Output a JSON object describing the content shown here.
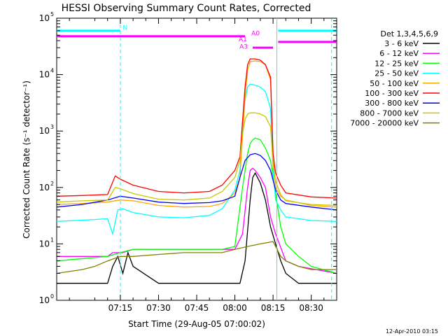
{
  "chart_data": {
    "type": "line",
    "title": "HESSI Observing Summary Count Rates, Corrected",
    "xlabel": "Start Time (29-Aug-05 07:00:02)",
    "ylabel": "Corrected Count Rate (s⁻¹ detector⁻¹)",
    "footer": "12-Apr-2010 03:15",
    "x_unit": "minutes after 07:00:02",
    "xlim": [
      -10,
      100
    ],
    "ylim": [
      1,
      100000
    ],
    "yscale": "log",
    "xticks": [
      {
        "x": 15,
        "label": "07:15"
      },
      {
        "x": 30,
        "label": "07:30"
      },
      {
        "x": 45,
        "label": "07:45"
      },
      {
        "x": 60,
        "label": "08:00"
      },
      {
        "x": 75,
        "label": "08:15"
      },
      {
        "x": 90,
        "label": "08:30"
      }
    ],
    "yticks": [
      {
        "y": 1,
        "label": "10",
        "exp": "0"
      },
      {
        "y": 10,
        "label": "10",
        "exp": "1"
      },
      {
        "y": 100,
        "label": "10",
        "exp": "2"
      },
      {
        "y": 1000,
        "label": "10",
        "exp": "3"
      },
      {
        "y": 10000,
        "label": "10",
        "exp": "4"
      },
      {
        "y": 100000,
        "label": "10",
        "exp": "5"
      }
    ],
    "legend_title": "Det 1,3,4,5,6,9",
    "legend_position": "right",
    "series": [
      {
        "name": "3 - 6 keV",
        "color": "#000000",
        "x": [
          -10,
          0,
          10,
          12,
          14,
          16,
          18,
          20,
          30,
          40,
          50,
          55,
          62,
          64,
          66,
          67,
          68,
          70,
          72,
          74,
          76,
          78,
          80,
          85,
          90,
          100
        ],
        "y": [
          2,
          2,
          2,
          4,
          6,
          3,
          7,
          4,
          2,
          2,
          2,
          2,
          2,
          5,
          60,
          150,
          180,
          120,
          60,
          20,
          10,
          5,
          3,
          2,
          2,
          2
        ]
      },
      {
        "name": "6 - 12 keV",
        "color": "#ff00ff",
        "x": [
          -10,
          10,
          12,
          16,
          20,
          30,
          40,
          50,
          60,
          63,
          65,
          66,
          67,
          68,
          70,
          72,
          74,
          76,
          80,
          85,
          100
        ],
        "y": [
          6,
          6,
          7,
          7,
          8,
          8,
          8,
          8,
          8,
          15,
          100,
          200,
          220,
          200,
          150,
          100,
          30,
          15,
          5,
          4,
          3
        ]
      },
      {
        "name": "12 - 25 keV",
        "color": "#00ff00",
        "x": [
          -10,
          10,
          15,
          20,
          30,
          40,
          50,
          55,
          60,
          63,
          65,
          66,
          67,
          68,
          70,
          72,
          74,
          76,
          78,
          80,
          85,
          90,
          100
        ],
        "y": [
          5,
          6,
          7,
          8,
          8,
          8,
          8,
          8,
          9,
          100,
          400,
          600,
          700,
          750,
          700,
          500,
          300,
          80,
          20,
          10,
          6,
          4,
          3
        ]
      },
      {
        "name": "25 - 50 keV",
        "color": "#00ffff",
        "x": [
          -10,
          5,
          10,
          12,
          14,
          16,
          20,
          30,
          40,
          50,
          55,
          60,
          62,
          63,
          64,
          65,
          66,
          68,
          70,
          72,
          74,
          75,
          76,
          78,
          80,
          85,
          90,
          100
        ],
        "y": [
          25,
          27,
          28,
          15,
          40,
          42,
          36,
          30,
          29,
          32,
          42,
          90,
          200,
          1200,
          3500,
          6000,
          6800,
          6500,
          6000,
          5000,
          2500,
          200,
          60,
          40,
          30,
          28,
          26,
          25
        ]
      },
      {
        "name": "50 - 100 keV",
        "color": "#ffa500",
        "x": [
          -10,
          0,
          10,
          15,
          20,
          30,
          40,
          50,
          55,
          60,
          62,
          63,
          64,
          65,
          66,
          68,
          70,
          72,
          74,
          75,
          76,
          78,
          80,
          90,
          100
        ],
        "y": [
          50,
          52,
          55,
          60,
          58,
          48,
          45,
          46,
          52,
          80,
          150,
          800,
          4000,
          12000,
          17000,
          17500,
          17000,
          15000,
          8000,
          400,
          100,
          70,
          60,
          48,
          45
        ]
      },
      {
        "name": "100 - 300 keV",
        "color": "#ff0000",
        "x": [
          -10,
          0,
          10,
          13,
          15,
          20,
          30,
          40,
          50,
          55,
          60,
          62,
          63,
          64,
          65,
          66,
          68,
          70,
          72,
          74,
          75,
          76,
          78,
          80,
          90,
          100
        ],
        "y": [
          70,
          72,
          75,
          160,
          140,
          110,
          85,
          80,
          85,
          110,
          200,
          350,
          1500,
          6000,
          15000,
          19000,
          19000,
          18000,
          15000,
          9000,
          400,
          180,
          110,
          80,
          68,
          65
        ]
      },
      {
        "name": "300 - 800 keV",
        "color": "#0000ff",
        "x": [
          -10,
          0,
          10,
          15,
          20,
          30,
          40,
          50,
          55,
          60,
          62,
          64,
          66,
          68,
          70,
          72,
          74,
          76,
          78,
          80,
          90,
          100
        ],
        "y": [
          45,
          50,
          60,
          70,
          65,
          55,
          52,
          54,
          58,
          70,
          150,
          300,
          380,
          400,
          370,
          300,
          200,
          90,
          60,
          52,
          45,
          40
        ]
      },
      {
        "name": "800 - 7000 keV",
        "color": "#c8c800",
        "x": [
          -10,
          0,
          10,
          13,
          15,
          20,
          30,
          40,
          50,
          55,
          60,
          62,
          63,
          64,
          65,
          66,
          68,
          70,
          72,
          74,
          75,
          76,
          78,
          80,
          90,
          100
        ],
        "y": [
          55,
          58,
          60,
          100,
          95,
          78,
          62,
          60,
          65,
          85,
          150,
          300,
          900,
          1600,
          2000,
          2100,
          2100,
          2000,
          1800,
          1200,
          250,
          130,
          75,
          58,
          50,
          48
        ]
      },
      {
        "name": "7000 - 20000 keV",
        "color": "#808000",
        "x": [
          -10,
          0,
          5,
          10,
          15,
          20,
          30,
          40,
          50,
          55,
          60,
          65,
          70,
          75,
          78,
          80,
          85,
          90,
          100
        ],
        "y": [
          3,
          3.5,
          4,
          5,
          6,
          6,
          6.5,
          7,
          7,
          7,
          8,
          9,
          10,
          11,
          6,
          5,
          4,
          3.5,
          3.5
        ]
      }
    ],
    "attenuator_lines": [
      {
        "x": [
          -10,
          15
        ],
        "y": 60000,
        "color": "#00ffff"
      },
      {
        "x": [
          77,
          100
        ],
        "y": 60000,
        "color": "#00ffff"
      },
      {
        "x": [
          -10,
          64
        ],
        "y": 48000,
        "color": "#ff00ff"
      },
      {
        "x": [
          67,
          75
        ],
        "y": 30000,
        "color": "#ff00ff"
      },
      {
        "x": [
          77,
          100
        ],
        "y": 38000,
        "color": "#ff00ff"
      }
    ],
    "vertical_markers": [
      {
        "x": 15,
        "color": "#00ffff",
        "style": "dashed"
      },
      {
        "x": 76.5,
        "color": "#00ffff",
        "style": "solid"
      },
      {
        "x": 98,
        "color": "#00ffff",
        "style": "dashed"
      }
    ],
    "annotations": [
      {
        "text": "N",
        "x": 16,
        "y": 62000,
        "color": "#00ffff"
      },
      {
        "text": "A0",
        "x": 66.5,
        "y": 50000,
        "color": "#ff00ff"
      },
      {
        "text": "A1",
        "x": 61.5,
        "y": 39000,
        "color": "#ff00ff"
      },
      {
        "text": "A3",
        "x": 61.8,
        "y": 29000,
        "color": "#ff00ff"
      }
    ]
  }
}
